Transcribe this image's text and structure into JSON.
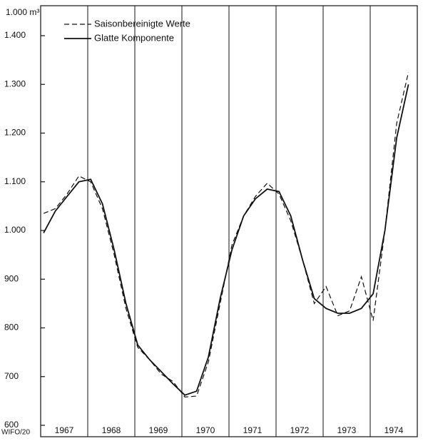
{
  "chart_data": {
    "type": "line",
    "y_axis_label": "1.000 m³",
    "footnote": "WIFO/20",
    "categories": [
      null,
      "1967",
      null,
      null,
      null,
      "1968",
      null,
      null,
      null,
      "1969",
      null,
      null,
      null,
      "1970",
      null,
      null,
      null,
      "1971",
      null,
      null,
      null,
      "1972",
      null,
      null,
      null,
      "1973",
      null,
      null,
      null,
      "1974",
      null,
      null
    ],
    "series": [
      {
        "name": "Saisonbereinigte Werte",
        "color": "#111111",
        "dash": true,
        "values": [
          1035,
          1045,
          1075,
          1112,
          1100,
          1045,
          950,
          840,
          760,
          735,
          705,
          690,
          658,
          660,
          730,
          850,
          970,
          1030,
          1070,
          1097,
          1075,
          1020,
          940,
          850,
          885,
          825,
          835,
          905,
          815,
          1000,
          1220,
          1325
        ]
      },
      {
        "name": "Glatte Komponente",
        "color": "#111111",
        "dash": false,
        "values": [
          995,
          1040,
          1070,
          1100,
          1105,
          1055,
          960,
          850,
          765,
          735,
          710,
          685,
          662,
          670,
          740,
          860,
          960,
          1030,
          1065,
          1085,
          1080,
          1030,
          940,
          860,
          840,
          830,
          830,
          840,
          870,
          1000,
          1190,
          1300
        ]
      }
    ],
    "ylim": [
      600,
      1400
    ],
    "yticks": [
      600,
      700,
      800,
      900,
      {
        "value": 1000,
        "label": "1.000"
      },
      {
        "value": 1100,
        "label": "1.100"
      },
      {
        "value": 1200,
        "label": "1.200"
      },
      {
        "value": 1300,
        "label": "1.300"
      },
      {
        "value": 1400,
        "label": "1.400"
      }
    ],
    "legend": "top-left"
  }
}
